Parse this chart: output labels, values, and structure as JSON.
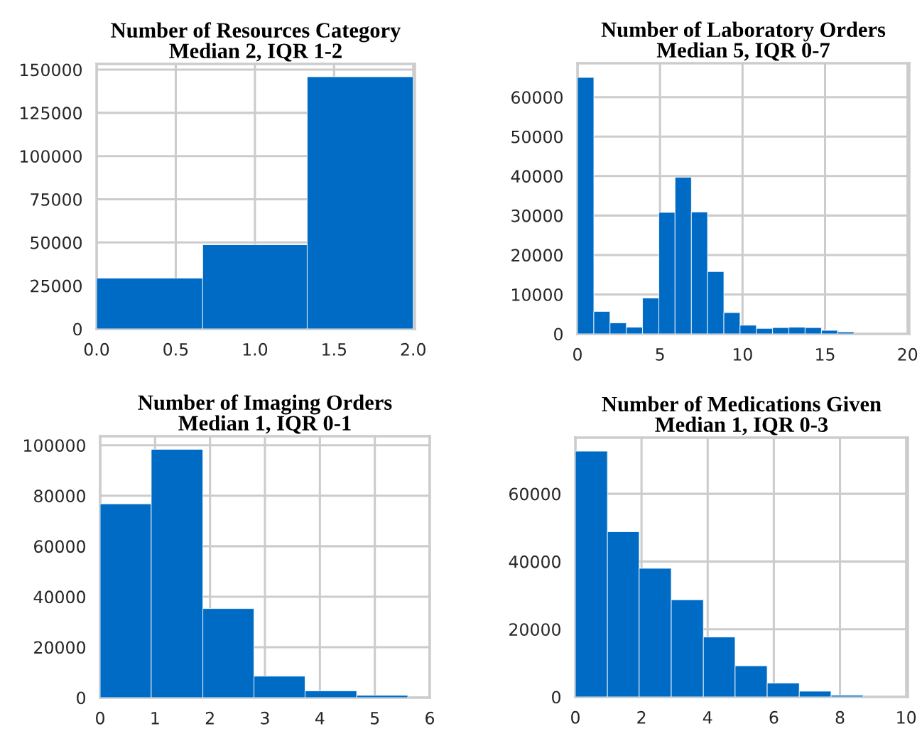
{
  "chart_data": [
    {
      "type": "histogram",
      "title": "Number of Resources Category\nMedian 2, IQR 1-2",
      "bins": [
        0,
        0.67,
        1.33,
        2
      ],
      "values": [
        29400,
        48700,
        145900
      ],
      "color": "#006bc4",
      "xlim": [
        0,
        2.01
      ],
      "xticks": [
        {
          "value": 0,
          "label": "0.0"
        },
        0.5,
        {
          "value": 1,
          "label": "1.0"
        },
        1.5,
        {
          "value": 2,
          "label": "2.0"
        }
      ],
      "ylim": [
        0,
        153300
      ],
      "yticks": [
        0,
        25000,
        50000,
        75000,
        100000,
        125000,
        150000
      ],
      "grid": true
    },
    {
      "type": "histogram",
      "title": "Number of Laboratory Orders\nMedian 5, IQR 0-7",
      "bins": [
        0,
        0.99,
        1.97,
        2.96,
        3.94,
        4.93,
        5.91,
        6.9,
        7.88,
        8.87,
        9.85,
        10.84,
        11.82,
        12.81,
        13.79,
        14.78,
        15.76,
        16.75
      ],
      "values": [
        65000,
        5700,
        2800,
        1700,
        9100,
        30800,
        39700,
        30900,
        15800,
        5400,
        2200,
        1400,
        1600,
        1700,
        1600,
        900,
        500
      ],
      "color": "#006bc4",
      "xlim": [
        0,
        20.1
      ],
      "xticks": [
        0,
        5,
        10,
        15,
        20
      ],
      "ylim": [
        0,
        68600
      ],
      "yticks": [
        0,
        10000,
        20000,
        30000,
        40000,
        50000,
        60000
      ],
      "grid": true
    },
    {
      "type": "histogram",
      "title": "Number of Imaging Orders\nMedian 1, IQR 0-1",
      "bins": [
        0,
        0.93,
        1.87,
        2.8,
        3.73,
        4.67,
        5.6
      ],
      "values": [
        76800,
        98400,
        35300,
        8500,
        2700,
        900
      ],
      "color": "#006bc4",
      "xlim": [
        0,
        6
      ],
      "xticks": [
        0,
        1,
        2,
        3,
        4,
        5,
        6
      ],
      "ylim": [
        0,
        103600
      ],
      "yticks": [
        0,
        20000,
        40000,
        60000,
        80000,
        100000
      ],
      "grid": true
    },
    {
      "type": "histogram",
      "title": "Number of Medications Given\nMedian 1, IQR 0-3",
      "bins": [
        0,
        0.97,
        1.93,
        2.9,
        3.87,
        4.83,
        5.8,
        6.77,
        7.73,
        8.7
      ],
      "values": [
        72600,
        48800,
        38000,
        28700,
        17700,
        9200,
        4100,
        1700,
        500
      ],
      "color": "#006bc4",
      "xlim": [
        0,
        10.05
      ],
      "xticks": [
        0,
        2,
        4,
        6,
        8,
        10
      ],
      "ylim": [
        0,
        76600
      ],
      "yticks": [
        0,
        20000,
        40000,
        60000
      ],
      "grid": true
    }
  ]
}
